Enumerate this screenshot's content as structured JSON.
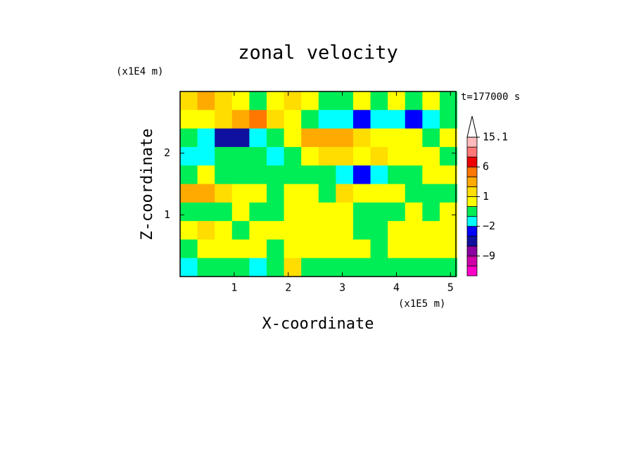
{
  "chart_data": {
    "type": "contour",
    "title": "zonal velocity",
    "y_unit": "(x1E4 m)",
    "x_unit": "(x1E5 m)",
    "time_label": "t=177000 s",
    "xlabel": "X-coordinate",
    "ylabel": "Z-coordinate",
    "xlim": [
      0,
      5.1
    ],
    "ylim": [
      0,
      3
    ],
    "xticks": [
      1,
      2,
      3,
      4,
      5
    ],
    "yticks": [
      1,
      2
    ],
    "x": [
      0.16,
      0.48,
      0.8,
      1.12,
      1.44,
      1.76,
      2.08,
      2.4,
      2.72,
      3.04,
      3.36,
      3.68,
      4.0,
      4.32,
      4.64,
      4.96
    ],
    "y": [
      2.85,
      2.55,
      2.25,
      1.95,
      1.65,
      1.35,
      1.05,
      0.75,
      0.45,
      0.15
    ],
    "z": [
      [
        1,
        2,
        1,
        0,
        -0.5,
        0.5,
        1,
        0.5,
        -0.5,
        -0.5,
        0.5,
        -0.5,
        0.5,
        -0.5,
        0.5,
        -0.5
      ],
      [
        0.5,
        0.5,
        1,
        2.5,
        3,
        1.5,
        0.5,
        -0.5,
        -1.5,
        -1.5,
        -3,
        -1.5,
        -1.5,
        -3,
        -1.5,
        -0.5
      ],
      [
        -0.5,
        -1.5,
        -4,
        -4,
        -1.5,
        -0.5,
        0.5,
        2,
        2.5,
        2.5,
        1,
        0.5,
        0.5,
        0.5,
        -0.5,
        0.5
      ],
      [
        -1.5,
        -1.5,
        -0.5,
        -0.5,
        -0.5,
        -1.5,
        -0.5,
        0.5,
        1,
        1,
        0.5,
        1.5,
        0.5,
        0.5,
        0.5,
        -0.5
      ],
      [
        -0.5,
        0.5,
        -0.5,
        -0.5,
        -0.5,
        -0.5,
        -0.5,
        -0.5,
        -0.5,
        -1.5,
        -3,
        -1.5,
        -0.5,
        -0.5,
        0.5,
        0.5
      ],
      [
        2.5,
        2.5,
        1.5,
        0.5,
        0.5,
        -0.5,
        0.5,
        0.5,
        -0.5,
        1.5,
        0.5,
        0.5,
        0.5,
        -0.5,
        -0.5,
        -0.5
      ],
      [
        -0.5,
        -0.5,
        -0.5,
        0.5,
        -0.5,
        -0.5,
        0.5,
        0.5,
        0.5,
        0.5,
        -0.5,
        -0.5,
        -0.5,
        0.5,
        -0.5,
        0.5
      ],
      [
        0.5,
        1.5,
        0.5,
        -0.5,
        0.5,
        0.5,
        0.5,
        0.5,
        0.5,
        0.5,
        -0.5,
        -0.5,
        0.5,
        0.5,
        0.5,
        0.5
      ],
      [
        -0.5,
        0.5,
        0.5,
        0.5,
        0.5,
        -0.5,
        0.5,
        0.5,
        0.5,
        0.5,
        0.5,
        -0.5,
        0.5,
        0.5,
        0.5,
        0.5
      ],
      [
        -1.5,
        -0.5,
        -0.5,
        -0.5,
        -1.5,
        -0.5,
        1.5,
        -0.5,
        -0.5,
        -0.5,
        -0.5,
        -0.5,
        -0.5,
        -0.5,
        -0.5,
        -0.5
      ]
    ],
    "levels": [
      -16,
      -12,
      -9,
      -6,
      -3,
      -2,
      -1,
      0,
      1,
      2,
      3,
      6,
      9,
      12,
      15.1
    ],
    "colors": [
      "#ff00c8",
      "#d000a8",
      "#8c00a0",
      "#1010a0",
      "#0000ff",
      "#00ffff",
      "#00ee55",
      "#ffff00",
      "#ffdd00",
      "#ffaa00",
      "#ff7700",
      "#ee0000",
      "#ff7777",
      "#ffbbbb"
    ],
    "colorbar_ticks": [
      {
        "value": 15.1,
        "label": "15.1"
      },
      6,
      1,
      {
        "value": -2,
        "label": "−2"
      },
      {
        "value": -9,
        "label": "−9"
      }
    ]
  }
}
